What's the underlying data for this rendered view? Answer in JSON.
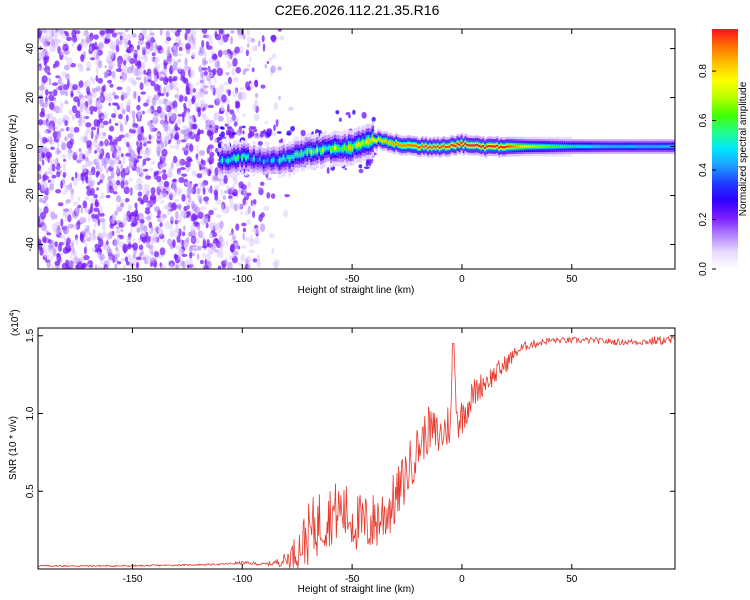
{
  "title": "C2E6.2026.112.21.35.R16",
  "chart_data": [
    {
      "type": "heatmap",
      "title": "C2E6.2026.112.21.35.R16",
      "xlabel": "Height of straight line (km)",
      "ylabel": "Frequency (Hz)",
      "xlim": [
        -193,
        97
      ],
      "ylim": [
        -50,
        48
      ],
      "xticks": [
        -150,
        -100,
        -50,
        0,
        50
      ],
      "yticks": [
        -40,
        -20,
        0,
        20,
        40
      ],
      "colorbar": {
        "label": "Normalized spectral amplitude",
        "range": [
          0,
          0.97
        ],
        "ticks": [
          0.0,
          0.2,
          0.4,
          0.6,
          0.8
        ],
        "colormap": [
          "#ffffff",
          "#e8d8ff",
          "#b080ff",
          "#7a1cff",
          "#2f00ff",
          "#1e3cff",
          "#1e9bff",
          "#00e8ff",
          "#22ff88",
          "#44ff00",
          "#b8ff00",
          "#ffff00",
          "#ffc000",
          "#ff7000",
          "#ff1020"
        ]
      },
      "ridge": {
        "description_points_x": [
          -110,
          -100,
          -90,
          -80,
          -70,
          -60,
          -50,
          -40,
          -30,
          -20,
          -10,
          0,
          10,
          20,
          30,
          50,
          70,
          95
        ],
        "frequency_y": [
          -6,
          -4,
          -6,
          -5,
          -2,
          -1,
          -0.5,
          3,
          1,
          0,
          0,
          1,
          0,
          0,
          0,
          0,
          0,
          0
        ],
        "peak_amplitude": [
          0.45,
          0.5,
          0.4,
          0.55,
          0.6,
          0.65,
          0.7,
          0.75,
          0.85,
          0.9,
          0.92,
          0.95,
          0.95,
          0.95,
          0.7,
          0.5,
          0.45,
          0.45
        ]
      },
      "noise_region_x": [
        -193,
        -85
      ]
    },
    {
      "type": "line",
      "xlabel": "Height of straight line (km)",
      "ylabel": "SNR (10 * v/v)",
      "multiplier_label": "(x10",
      "multiplier_exp": "4",
      "multiplier_close": ")",
      "xlim": [
        -193,
        97
      ],
      "ylim": [
        0,
        1.55
      ],
      "xticks": [
        -150,
        -100,
        -50,
        0,
        50
      ],
      "yticks": [
        0.5,
        1.0,
        1.5
      ],
      "ytick_labels": [
        "0.5",
        "1.0",
        "1.5"
      ],
      "color": "#e8392d",
      "x": [
        -193,
        -150,
        -110,
        -100,
        -90,
        -85,
        -80,
        -75,
        -70,
        -65,
        -60,
        -55,
        -50,
        -45,
        -40,
        -35,
        -30,
        -25,
        -20,
        -15,
        -10,
        -5,
        -4,
        -2,
        0,
        5,
        10,
        15,
        20,
        25,
        30,
        40,
        50,
        60,
        70,
        80,
        90,
        97
      ],
      "values": [
        0.02,
        0.02,
        0.03,
        0.04,
        0.03,
        0.04,
        0.06,
        0.12,
        0.22,
        0.3,
        0.35,
        0.38,
        0.32,
        0.28,
        0.3,
        0.36,
        0.45,
        0.62,
        0.78,
        0.9,
        0.85,
        0.95,
        1.45,
        0.95,
        0.98,
        1.12,
        1.2,
        1.25,
        1.32,
        1.4,
        1.44,
        1.47,
        1.47,
        1.47,
        1.46,
        1.46,
        1.47,
        1.47
      ],
      "noise_amplitude": [
        0.005,
        0.005,
        0.005,
        0.01,
        0.01,
        0.02,
        0.05,
        0.12,
        0.2,
        0.22,
        0.2,
        0.2,
        0.2,
        0.2,
        0.2,
        0.2,
        0.18,
        0.18,
        0.15,
        0.15,
        0.15,
        0.15,
        0.0,
        0.15,
        0.12,
        0.1,
        0.08,
        0.07,
        0.06,
        0.04,
        0.03,
        0.02,
        0.02,
        0.02,
        0.02,
        0.02,
        0.03,
        0.03
      ]
    }
  ]
}
